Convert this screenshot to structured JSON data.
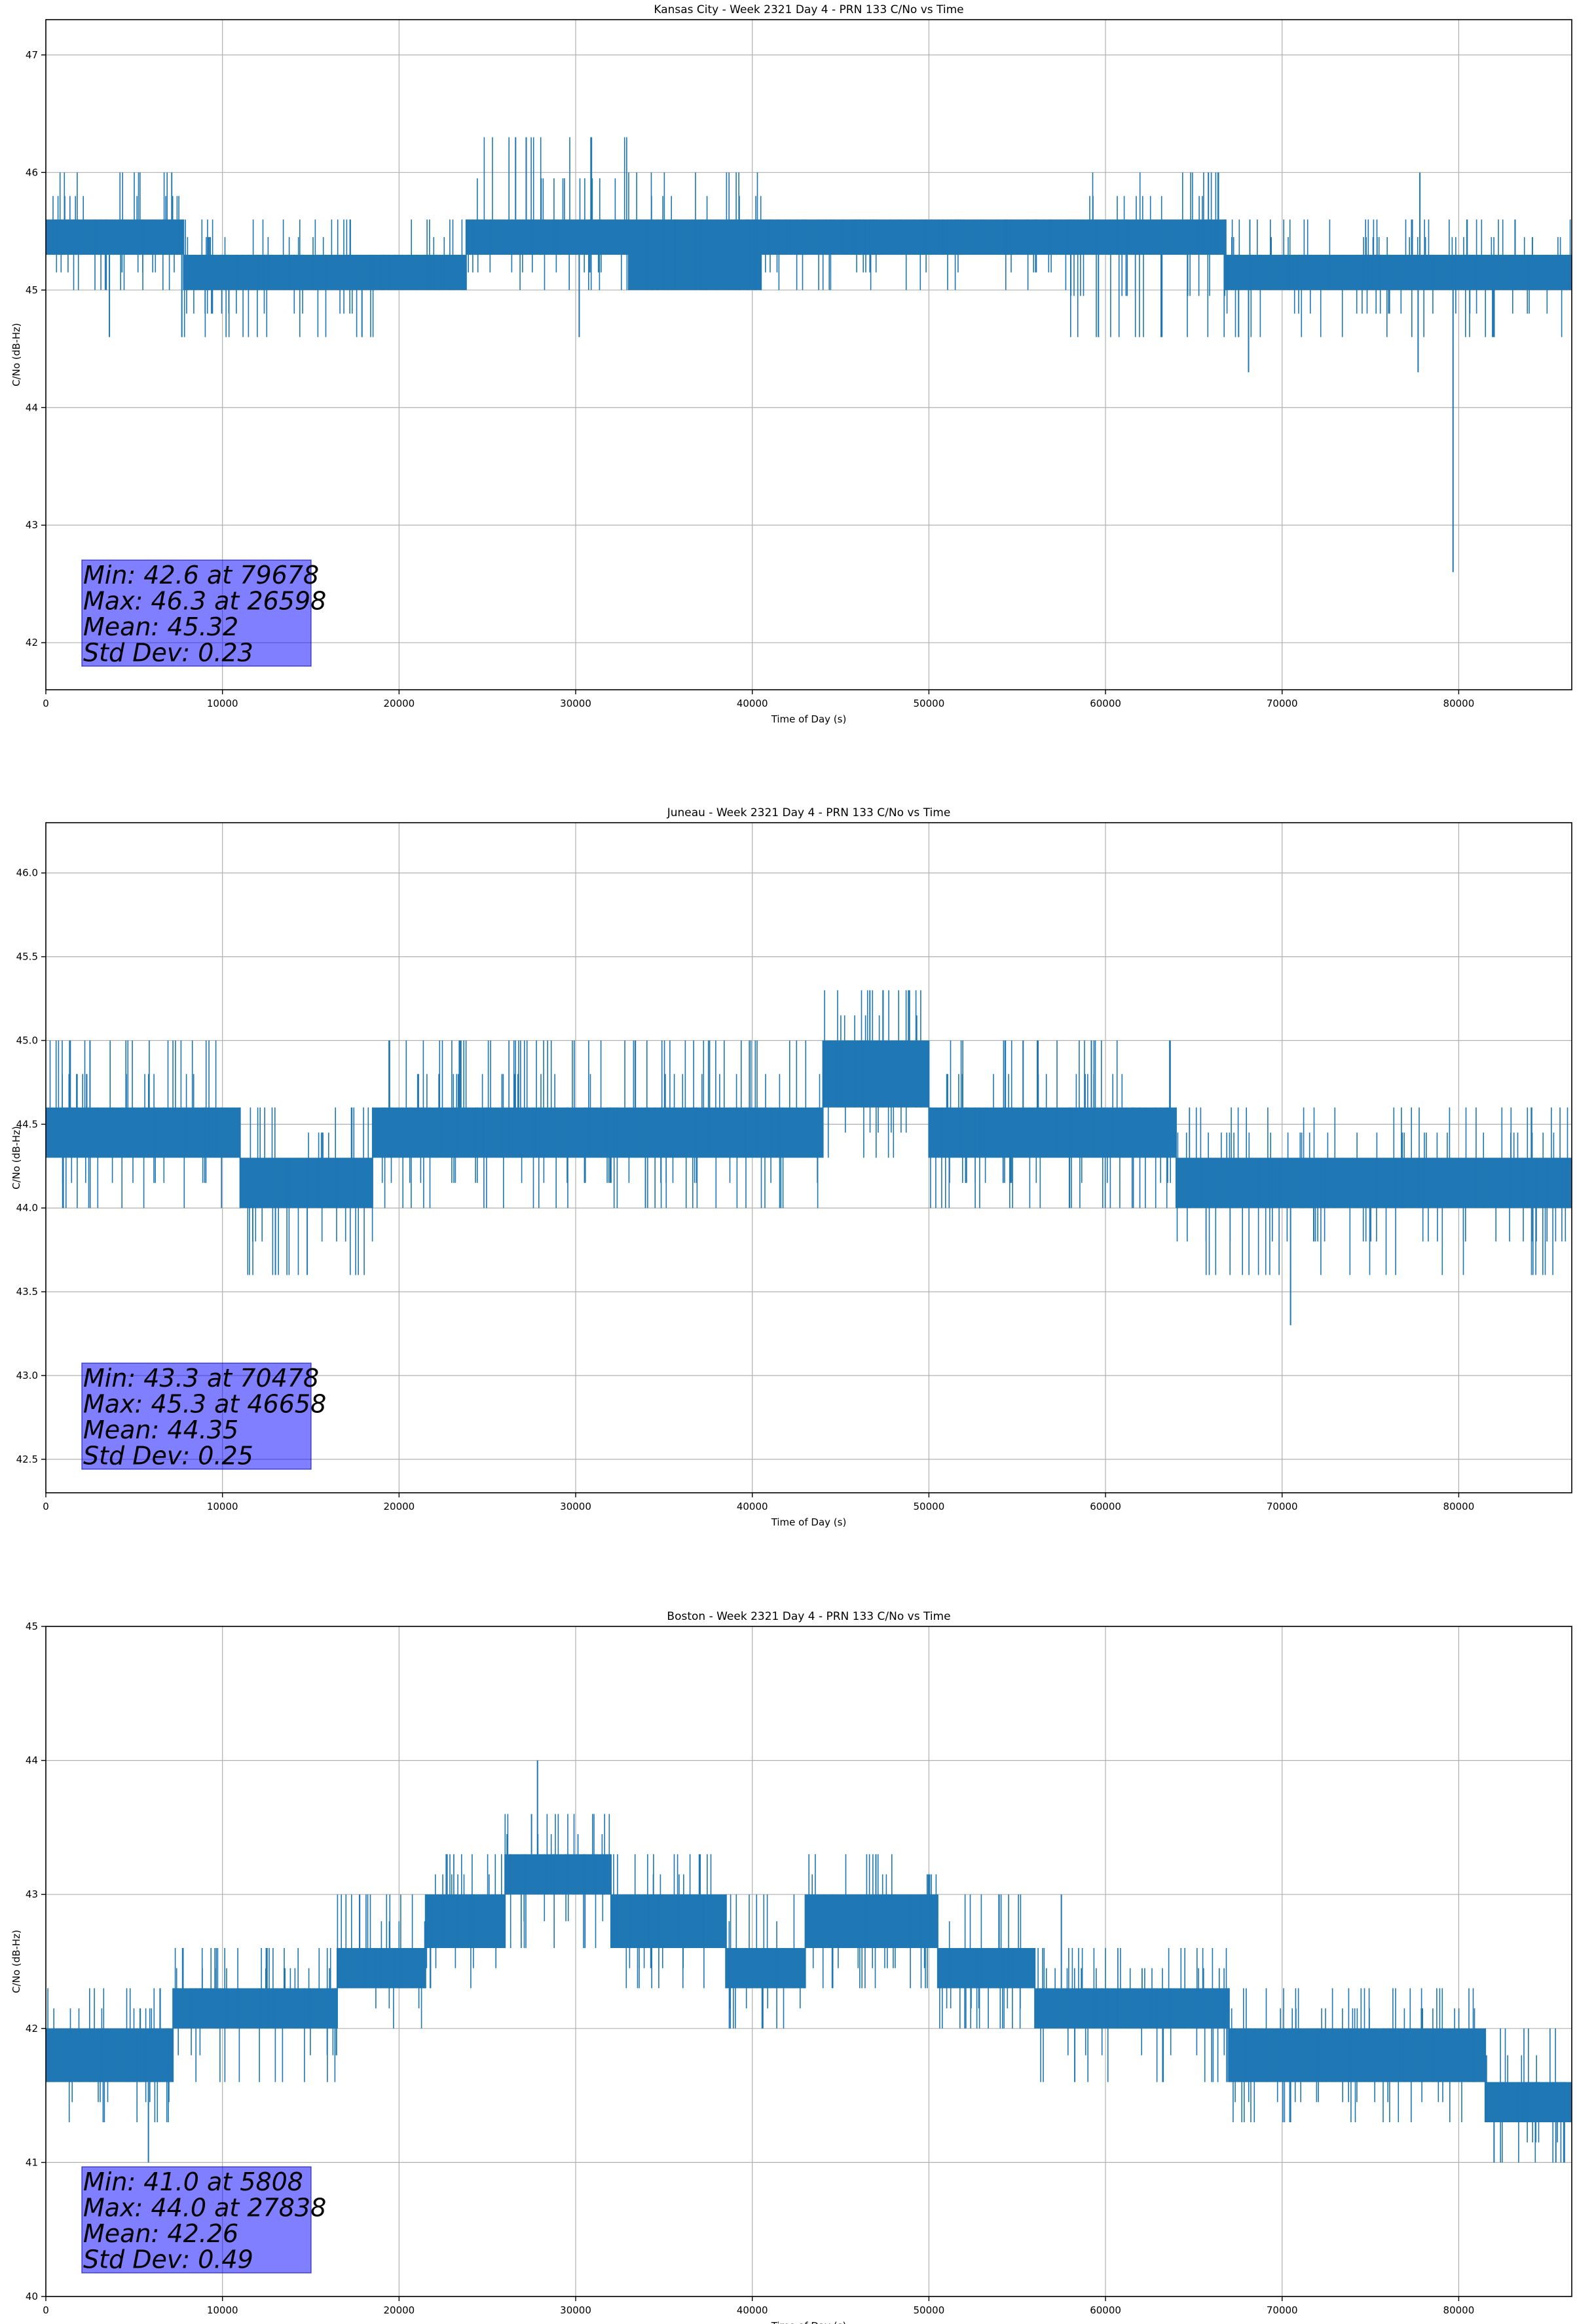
{
  "chart_data": [
    {
      "type": "line",
      "title": "Kansas City - Week 2321 Day 4 - PRN 133 C/No vs Time",
      "xlabel": "Time of Day (s)",
      "ylabel": "C/No (dB-Hz)",
      "xlim": [
        0,
        86400
      ],
      "ylim": [
        41.6,
        47.3
      ],
      "xticks": [
        0,
        10000,
        20000,
        30000,
        40000,
        50000,
        60000,
        70000,
        80000
      ],
      "yticks": [
        42,
        43,
        44,
        45,
        46,
        47
      ],
      "grid": true,
      "line_color": "#1f77b4",
      "stats_lines": [
        "Min: 42.6 at 79678",
        "Max: 46.3 at 26598",
        "Mean: 45.32",
        "Std Dev: 0.23"
      ],
      "segments": [
        {
          "x": [
            0,
            7800
          ],
          "band": [
            45.3,
            45.6
          ],
          "spread": [
            45.0,
            46.0
          ]
        },
        {
          "x": [
            7800,
            19000
          ],
          "band": [
            45.0,
            45.3
          ],
          "spread": [
            44.6,
            45.6
          ]
        },
        {
          "x": [
            19000,
            23800
          ],
          "band": [
            45.0,
            45.3
          ],
          "spread": [
            45.0,
            45.6
          ]
        },
        {
          "x": [
            23800,
            33000
          ],
          "band": [
            45.3,
            45.6
          ],
          "spread": [
            45.0,
            46.3
          ]
        },
        {
          "x": [
            33000,
            40500
          ],
          "band": [
            45.0,
            45.6
          ],
          "spread": [
            45.0,
            46.0
          ]
        },
        {
          "x": [
            40500,
            58000
          ],
          "band": [
            45.3,
            45.6
          ],
          "spread": [
            45.0,
            45.6
          ]
        },
        {
          "x": [
            58000,
            66800
          ],
          "band": [
            45.3,
            45.6
          ],
          "spread": [
            44.6,
            46.0
          ]
        },
        {
          "x": [
            66800,
            86400
          ],
          "band": [
            45.0,
            45.3
          ],
          "spread": [
            44.6,
            45.6
          ]
        }
      ],
      "spikes": [
        {
          "x": 3600,
          "y": 44.6
        },
        {
          "x": 7700,
          "y": 44.6
        },
        {
          "x": 17900,
          "y": 44.6
        },
        {
          "x": 26598,
          "y": 46.3
        },
        {
          "x": 27200,
          "y": 46.3
        },
        {
          "x": 30200,
          "y": 44.6
        },
        {
          "x": 59600,
          "y": 44.6
        },
        {
          "x": 68100,
          "y": 44.3
        },
        {
          "x": 77700,
          "y": 44.3
        },
        {
          "x": 77800,
          "y": 46.0
        },
        {
          "x": 79678,
          "y": 42.6
        }
      ]
    },
    {
      "type": "line",
      "title": "Juneau - Week 2321 Day 4 - PRN 133 C/No vs Time",
      "xlabel": "Time of Day (s)",
      "ylabel": "C/No (dB-Hz)",
      "xlim": [
        0,
        86400
      ],
      "ylim": [
        42.3,
        46.3
      ],
      "xticks": [
        0,
        10000,
        20000,
        30000,
        40000,
        50000,
        60000,
        70000,
        80000
      ],
      "yticks": [
        42.5,
        43.0,
        43.5,
        44.0,
        44.5,
        45.0,
        45.5,
        46.0
      ],
      "grid": true,
      "line_color": "#1f77b4",
      "stats_lines": [
        "Min: 43.3 at 70478",
        "Max: 45.3 at 46658",
        "Mean: 44.35",
        "Std Dev: 0.25"
      ],
      "segments": [
        {
          "x": [
            0,
            11000
          ],
          "band": [
            44.3,
            44.6
          ],
          "spread": [
            44.0,
            45.0
          ]
        },
        {
          "x": [
            11000,
            18500
          ],
          "band": [
            44.0,
            44.3
          ],
          "spread": [
            43.6,
            44.6
          ]
        },
        {
          "x": [
            18500,
            44000
          ],
          "band": [
            44.3,
            44.6
          ],
          "spread": [
            44.0,
            45.0
          ]
        },
        {
          "x": [
            44000,
            50000
          ],
          "band": [
            44.6,
            45.0
          ],
          "spread": [
            44.3,
            45.3
          ]
        },
        {
          "x": [
            50000,
            64000
          ],
          "band": [
            44.3,
            44.6
          ],
          "spread": [
            44.0,
            45.0
          ]
        },
        {
          "x": [
            64000,
            86400
          ],
          "band": [
            44.0,
            44.3
          ],
          "spread": [
            43.6,
            44.6
          ]
        }
      ],
      "spikes": [
        {
          "x": 2500,
          "y": 45.0
        },
        {
          "x": 13000,
          "y": 43.6
        },
        {
          "x": 14800,
          "y": 43.6
        },
        {
          "x": 46658,
          "y": 45.3
        },
        {
          "x": 47400,
          "y": 45.3
        },
        {
          "x": 48900,
          "y": 45.3
        },
        {
          "x": 59200,
          "y": 45.0
        },
        {
          "x": 70478,
          "y": 43.3
        }
      ]
    },
    {
      "type": "line",
      "title": "Boston - Week 2321 Day 4 - PRN 133 C/No vs Time",
      "xlabel": "Time of Day (s)",
      "ylabel": "C/No (dB-Hz)",
      "xlim": [
        0,
        86400
      ],
      "ylim": [
        40,
        45
      ],
      "xticks": [
        0,
        10000,
        20000,
        30000,
        40000,
        50000,
        60000,
        70000,
        80000
      ],
      "yticks": [
        40,
        41,
        42,
        43,
        44,
        45
      ],
      "grid": true,
      "line_color": "#1f77b4",
      "stats_lines": [
        "Min: 41.0 at 5808",
        "Max: 44.0 at 27838",
        "Mean: 42.26",
        "Std Dev: 0.49"
      ],
      "segments": [
        {
          "x": [
            0,
            7200
          ],
          "band": [
            41.6,
            42.0
          ],
          "spread": [
            41.3,
            42.3
          ]
        },
        {
          "x": [
            7200,
            16500
          ],
          "band": [
            42.0,
            42.3
          ],
          "spread": [
            41.6,
            42.6
          ]
        },
        {
          "x": [
            16500,
            21500
          ],
          "band": [
            42.3,
            42.6
          ],
          "spread": [
            42.0,
            43.0
          ]
        },
        {
          "x": [
            21500,
            26000
          ],
          "band": [
            42.6,
            43.0
          ],
          "spread": [
            42.3,
            43.3
          ]
        },
        {
          "x": [
            26000,
            32000
          ],
          "band": [
            43.0,
            43.3
          ],
          "spread": [
            42.6,
            43.6
          ]
        },
        {
          "x": [
            32000,
            38500
          ],
          "band": [
            42.6,
            43.0
          ],
          "spread": [
            42.3,
            43.3
          ]
        },
        {
          "x": [
            38500,
            43000
          ],
          "band": [
            42.3,
            42.6
          ],
          "spread": [
            42.0,
            43.0
          ]
        },
        {
          "x": [
            43000,
            50500
          ],
          "band": [
            42.6,
            43.0
          ],
          "spread": [
            42.3,
            43.3
          ]
        },
        {
          "x": [
            50500,
            56000
          ],
          "band": [
            42.3,
            42.6
          ],
          "spread": [
            42.0,
            43.0
          ]
        },
        {
          "x": [
            56000,
            67000
          ],
          "band": [
            42.0,
            42.3
          ],
          "spread": [
            41.6,
            42.6
          ]
        },
        {
          "x": [
            67000,
            81500
          ],
          "band": [
            41.6,
            42.0
          ],
          "spread": [
            41.3,
            42.3
          ]
        },
        {
          "x": [
            81500,
            86400
          ],
          "band": [
            41.3,
            41.6
          ],
          "spread": [
            41.0,
            42.0
          ]
        }
      ],
      "spikes": [
        {
          "x": 5808,
          "y": 41.0
        },
        {
          "x": 27500,
          "y": 43.6
        },
        {
          "x": 27838,
          "y": 44.0
        },
        {
          "x": 37000,
          "y": 43.3
        },
        {
          "x": 47000,
          "y": 43.3
        },
        {
          "x": 57500,
          "y": 43.0
        },
        {
          "x": 82000,
          "y": 41.0
        },
        {
          "x": 85500,
          "y": 41.0
        }
      ]
    }
  ]
}
